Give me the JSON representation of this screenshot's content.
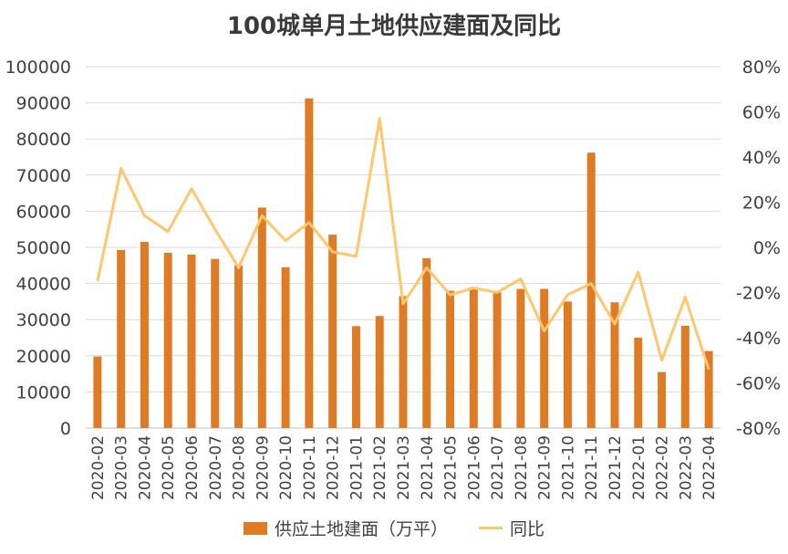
{
  "chart_data": {
    "type": "bar",
    "title": "100城单月土地供应建面及同比",
    "categories": [
      "2020-02",
      "2020-03",
      "2020-04",
      "2020-05",
      "2020-06",
      "2020-07",
      "2020-08",
      "2020-09",
      "2020-10",
      "2020-11",
      "2020-12",
      "2021-01",
      "2021-02",
      "2021-03",
      "2021-04",
      "2021-05",
      "2021-06",
      "2021-07",
      "2021-08",
      "2021-09",
      "2021-10",
      "2021-11",
      "2021-12",
      "2022-01",
      "2022-02",
      "2022-03",
      "2022-04"
    ],
    "series": [
      {
        "name": "供应土地建面（万平）",
        "type": "bar",
        "axis": "left",
        "color": "#E07B25",
        "values": [
          19800,
          49300,
          51500,
          48500,
          48000,
          46800,
          45000,
          61000,
          44500,
          91200,
          53500,
          28200,
          31000,
          36500,
          47000,
          38000,
          39000,
          37500,
          38500,
          38500,
          35000,
          76200,
          34800,
          25000,
          15500,
          28300,
          21300
        ]
      },
      {
        "name": "同比",
        "type": "line",
        "axis": "right",
        "color": "#FFC66B",
        "values": [
          -15,
          35,
          14,
          7,
          26,
          8,
          -9,
          14,
          3,
          11,
          -2,
          -4,
          57,
          -25,
          -9,
          -21,
          -18,
          -20,
          -14,
          -37,
          -21,
          -16,
          -34,
          -11,
          -50,
          -22,
          -54
        ]
      }
    ],
    "y_left": {
      "min": 0,
      "max": 100000,
      "ticks": [
        "0",
        "10000",
        "20000",
        "30000",
        "40000",
        "50000",
        "60000",
        "70000",
        "80000",
        "90000",
        "100000"
      ]
    },
    "y_right": {
      "min": -80,
      "max": 80,
      "ticks": [
        "-80%",
        "-60%",
        "-40%",
        "-20%",
        "0%",
        "20%",
        "40%",
        "60%",
        "80%"
      ]
    },
    "grid": true,
    "legend_position": "bottom"
  }
}
